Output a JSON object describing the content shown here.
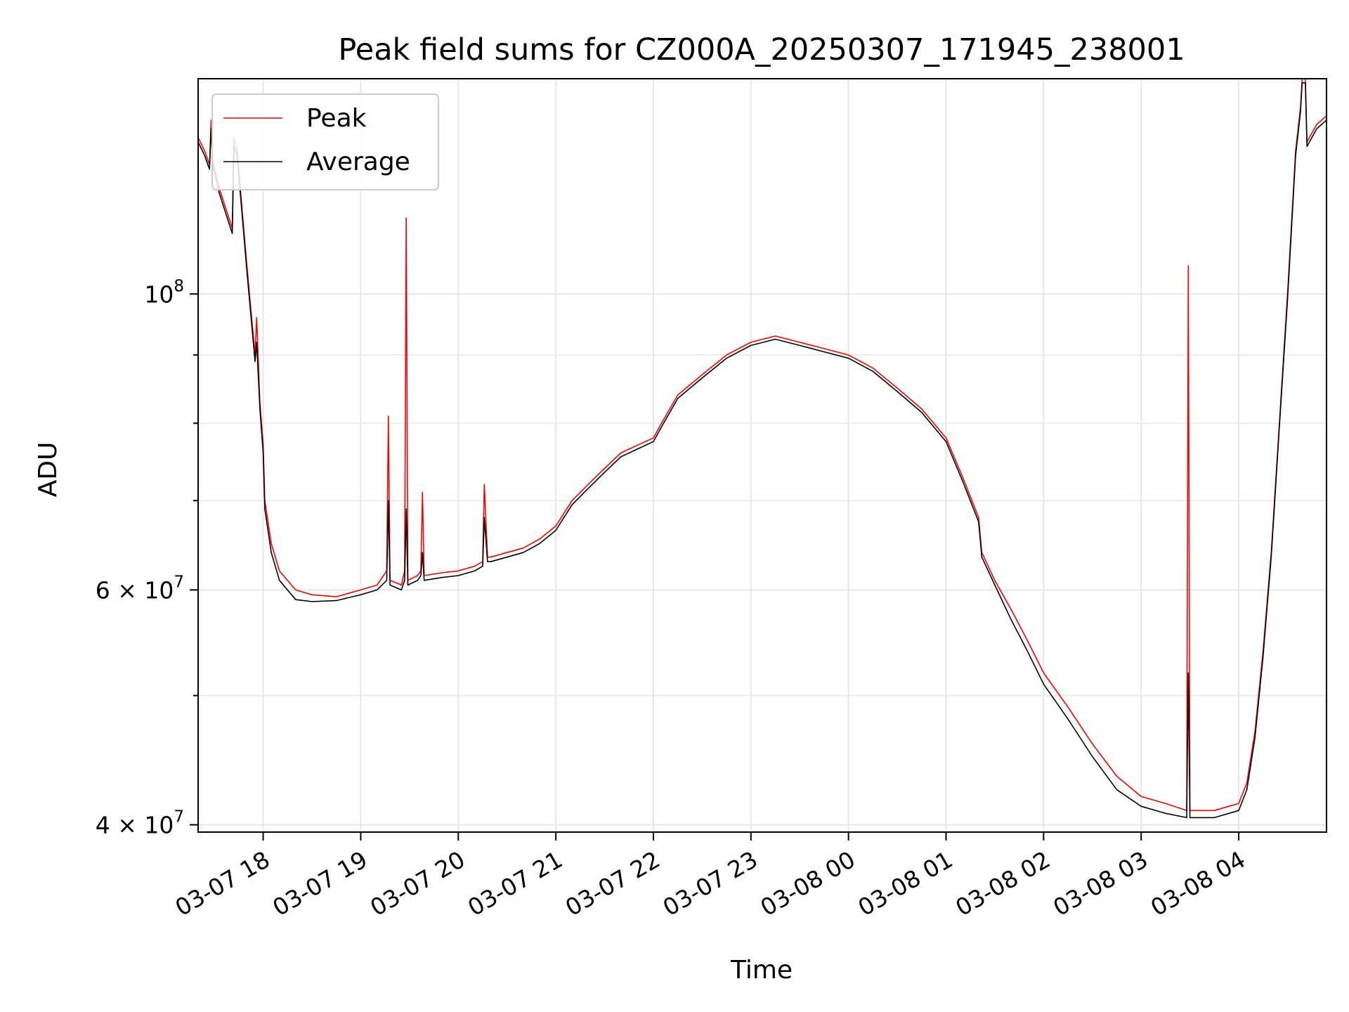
{
  "chart_data": {
    "type": "line",
    "title": "Peak field sums for CZ000A_20250307_171945_238001",
    "xlabel": "Time",
    "ylabel": "ADU",
    "x_scale": "time",
    "y_scale": "log",
    "xlim": [
      "2025-03-07 17:20",
      "2025-03-08 04:54"
    ],
    "ylim": [
      39500000,
      145000000
    ],
    "x_ticks": [
      {
        "value": "2025-03-07 18:00",
        "label": "03-07 18"
      },
      {
        "value": "2025-03-07 19:00",
        "label": "03-07 19"
      },
      {
        "value": "2025-03-07 20:00",
        "label": "03-07 20"
      },
      {
        "value": "2025-03-07 21:00",
        "label": "03-07 21"
      },
      {
        "value": "2025-03-07 22:00",
        "label": "03-07 22"
      },
      {
        "value": "2025-03-07 23:00",
        "label": "03-07 23"
      },
      {
        "value": "2025-03-08 00:00",
        "label": "03-08 00"
      },
      {
        "value": "2025-03-08 01:00",
        "label": "03-08 01"
      },
      {
        "value": "2025-03-08 02:00",
        "label": "03-08 02"
      },
      {
        "value": "2025-03-08 03:00",
        "label": "03-08 03"
      },
      {
        "value": "2025-03-08 04:00",
        "label": "03-08 04"
      }
    ],
    "y_major_ticks": [
      {
        "value": 100000000,
        "base": "10",
        "exp": "8"
      },
      {
        "value": 60000000,
        "base": "6 × 10",
        "exp": "7"
      },
      {
        "value": 40000000,
        "base": "4 × 10",
        "exp": "7"
      }
    ],
    "y_minor_ticks": [
      50000000,
      70000000,
      80000000,
      90000000
    ],
    "grid": true,
    "legend_position": "upper-left",
    "series": [
      {
        "name": "Peak",
        "color": "#ff0000",
        "x": [
          "2025-03-07 17:20",
          "2025-03-07 17:24",
          "2025-03-07 17:27",
          "2025-03-07 17:28",
          "2025-03-07 17:29",
          "2025-03-07 17:33",
          "2025-03-07 17:41",
          "2025-03-07 17:42",
          "2025-03-07 17:44",
          "2025-03-07 17:50",
          "2025-03-07 17:55",
          "2025-03-07 17:56",
          "2025-03-07 17:58",
          "2025-03-07 18:00",
          "2025-03-07 18:01",
          "2025-03-07 18:05",
          "2025-03-07 18:10",
          "2025-03-07 18:20",
          "2025-03-07 18:30",
          "2025-03-07 18:45",
          "2025-03-07 19:00",
          "2025-03-07 19:10",
          "2025-03-07 19:16",
          "2025-03-07 19:17",
          "2025-03-07 19:18",
          "2025-03-07 19:25",
          "2025-03-07 19:27",
          "2025-03-07 19:28",
          "2025-03-07 19:29",
          "2025-03-07 19:35",
          "2025-03-07 19:37",
          "2025-03-07 19:38",
          "2025-03-07 19:39",
          "2025-03-07 19:50",
          "2025-03-07 20:00",
          "2025-03-07 20:10",
          "2025-03-07 20:15",
          "2025-03-07 20:16",
          "2025-03-07 20:18",
          "2025-03-07 20:20",
          "2025-03-07 20:30",
          "2025-03-07 20:40",
          "2025-03-07 20:45",
          "2025-03-07 20:50",
          "2025-03-07 21:00",
          "2025-03-07 21:10",
          "2025-03-07 21:20",
          "2025-03-07 21:30",
          "2025-03-07 21:40",
          "2025-03-07 21:50",
          "2025-03-07 22:00",
          "2025-03-07 22:05",
          "2025-03-07 22:15",
          "2025-03-07 22:30",
          "2025-03-07 22:45",
          "2025-03-07 23:00",
          "2025-03-07 23:15",
          "2025-03-07 23:30",
          "2025-03-07 23:45",
          "2025-03-08 00:00",
          "2025-03-08 00:15",
          "2025-03-08 00:30",
          "2025-03-08 00:45",
          "2025-03-08 01:00",
          "2025-03-08 01:10",
          "2025-03-08 01:20",
          "2025-03-08 01:22",
          "2025-03-08 01:30",
          "2025-03-08 01:40",
          "2025-03-08 01:50",
          "2025-03-08 02:00",
          "2025-03-08 02:15",
          "2025-03-08 02:30",
          "2025-03-08 02:45",
          "2025-03-08 03:00",
          "2025-03-08 03:15",
          "2025-03-08 03:28",
          "2025-03-08 03:29",
          "2025-03-08 03:30",
          "2025-03-08 03:45",
          "2025-03-08 04:00",
          "2025-03-08 04:05",
          "2025-03-08 04:10",
          "2025-03-08 04:15",
          "2025-03-08 04:20",
          "2025-03-08 04:25",
          "2025-03-08 04:30",
          "2025-03-08 04:35",
          "2025-03-08 04:38",
          "2025-03-08 04:39",
          "2025-03-08 04:41",
          "2025-03-08 04:42",
          "2025-03-08 04:48",
          "2025-03-08 04:54"
        ],
        "y": [
          131000000,
          128000000,
          125000000,
          135000000,
          126000000,
          120000000,
          112000000,
          131000000,
          128000000,
          105000000,
          90000000,
          96000000,
          83000000,
          77000000,
          70000000,
          65000000,
          62000000,
          60000000,
          59500000,
          59300000,
          60000000,
          60500000,
          62000000,
          81000000,
          61000000,
          60500000,
          62000000,
          114000000,
          61000000,
          61500000,
          62000000,
          71000000,
          61500000,
          61800000,
          62000000,
          62500000,
          63000000,
          72000000,
          63500000,
          63500000,
          64000000,
          64500000,
          65000000,
          65500000,
          67000000,
          70000000,
          72000000,
          74000000,
          76000000,
          77000000,
          78000000,
          80000000,
          84000000,
          87000000,
          90000000,
          92000000,
          93000000,
          92000000,
          91000000,
          90000000,
          88000000,
          85000000,
          82000000,
          78000000,
          73000000,
          68000000,
          64000000,
          61000000,
          58000000,
          55000000,
          52000000,
          49000000,
          46000000,
          43500000,
          42000000,
          41500000,
          41000000,
          105000000,
          41000000,
          41000000,
          41500000,
          43000000,
          47000000,
          54000000,
          64000000,
          80000000,
          100000000,
          128000000,
          138000000,
          145000000,
          145000000,
          130000000,
          134000000,
          136000000
        ]
      },
      {
        "name": "Average",
        "color": "#000000",
        "x": [
          "2025-03-07 17:20",
          "2025-03-07 17:24",
          "2025-03-07 17:27",
          "2025-03-07 17:28",
          "2025-03-07 17:29",
          "2025-03-07 17:33",
          "2025-03-07 17:41",
          "2025-03-07 17:42",
          "2025-03-07 17:44",
          "2025-03-07 17:50",
          "2025-03-07 17:55",
          "2025-03-07 17:56",
          "2025-03-07 17:58",
          "2025-03-07 18:00",
          "2025-03-07 18:01",
          "2025-03-07 18:05",
          "2025-03-07 18:10",
          "2025-03-07 18:20",
          "2025-03-07 18:30",
          "2025-03-07 18:45",
          "2025-03-07 19:00",
          "2025-03-07 19:10",
          "2025-03-07 19:16",
          "2025-03-07 19:17",
          "2025-03-07 19:18",
          "2025-03-07 19:25",
          "2025-03-07 19:27",
          "2025-03-07 19:28",
          "2025-03-07 19:29",
          "2025-03-07 19:35",
          "2025-03-07 19:37",
          "2025-03-07 19:38",
          "2025-03-07 19:39",
          "2025-03-07 19:50",
          "2025-03-07 20:00",
          "2025-03-07 20:10",
          "2025-03-07 20:15",
          "2025-03-07 20:16",
          "2025-03-07 20:18",
          "2025-03-07 20:20",
          "2025-03-07 20:30",
          "2025-03-07 20:40",
          "2025-03-07 20:45",
          "2025-03-07 20:50",
          "2025-03-07 21:00",
          "2025-03-07 21:10",
          "2025-03-07 21:20",
          "2025-03-07 21:30",
          "2025-03-07 21:40",
          "2025-03-07 21:50",
          "2025-03-07 22:00",
          "2025-03-07 22:05",
          "2025-03-07 22:15",
          "2025-03-07 22:30",
          "2025-03-07 22:45",
          "2025-03-07 23:00",
          "2025-03-07 23:15",
          "2025-03-07 23:30",
          "2025-03-07 23:45",
          "2025-03-08 00:00",
          "2025-03-08 00:15",
          "2025-03-08 00:30",
          "2025-03-08 00:45",
          "2025-03-08 01:00",
          "2025-03-08 01:10",
          "2025-03-08 01:20",
          "2025-03-08 01:22",
          "2025-03-08 01:30",
          "2025-03-08 01:40",
          "2025-03-08 01:50",
          "2025-03-08 02:00",
          "2025-03-08 02:15",
          "2025-03-08 02:30",
          "2025-03-08 02:45",
          "2025-03-08 03:00",
          "2025-03-08 03:15",
          "2025-03-08 03:28",
          "2025-03-08 03:29",
          "2025-03-08 03:30",
          "2025-03-08 03:45",
          "2025-03-08 04:00",
          "2025-03-08 04:05",
          "2025-03-08 04:10",
          "2025-03-08 04:15",
          "2025-03-08 04:20",
          "2025-03-08 04:25",
          "2025-03-08 04:30",
          "2025-03-08 04:35",
          "2025-03-08 04:38",
          "2025-03-08 04:39",
          "2025-03-08 04:41",
          "2025-03-08 04:42",
          "2025-03-08 04:48",
          "2025-03-08 04:54"
        ],
        "y": [
          130000000,
          127000000,
          124000000,
          133000000,
          125000000,
          119000000,
          111000000,
          129000000,
          127000000,
          104000000,
          89000000,
          92000000,
          82000000,
          76000000,
          69000000,
          64000000,
          61000000,
          59000000,
          58800000,
          58900000,
          59500000,
          60000000,
          61000000,
          70000000,
          60500000,
          60000000,
          61000000,
          69000000,
          60500000,
          61000000,
          61500000,
          64000000,
          61000000,
          61300000,
          61500000,
          62000000,
          62500000,
          68000000,
          63000000,
          63000000,
          63500000,
          64000000,
          64500000,
          65000000,
          66500000,
          69500000,
          71500000,
          73500000,
          75500000,
          76500000,
          77500000,
          79500000,
          83500000,
          86500000,
          89500000,
          91500000,
          92500000,
          91500000,
          90500000,
          89500000,
          87500000,
          84500000,
          81500000,
          77500000,
          72500000,
          67500000,
          63500000,
          60500000,
          57000000,
          54000000,
          51000000,
          48000000,
          45000000,
          42500000,
          41300000,
          40800000,
          40500000,
          52000000,
          40500000,
          40500000,
          41000000,
          42500000,
          46500000,
          53500000,
          63500000,
          79500000,
          99000000,
          127000000,
          137000000,
          144000000,
          144000000,
          129000000,
          133000000,
          135000000
        ]
      }
    ]
  }
}
